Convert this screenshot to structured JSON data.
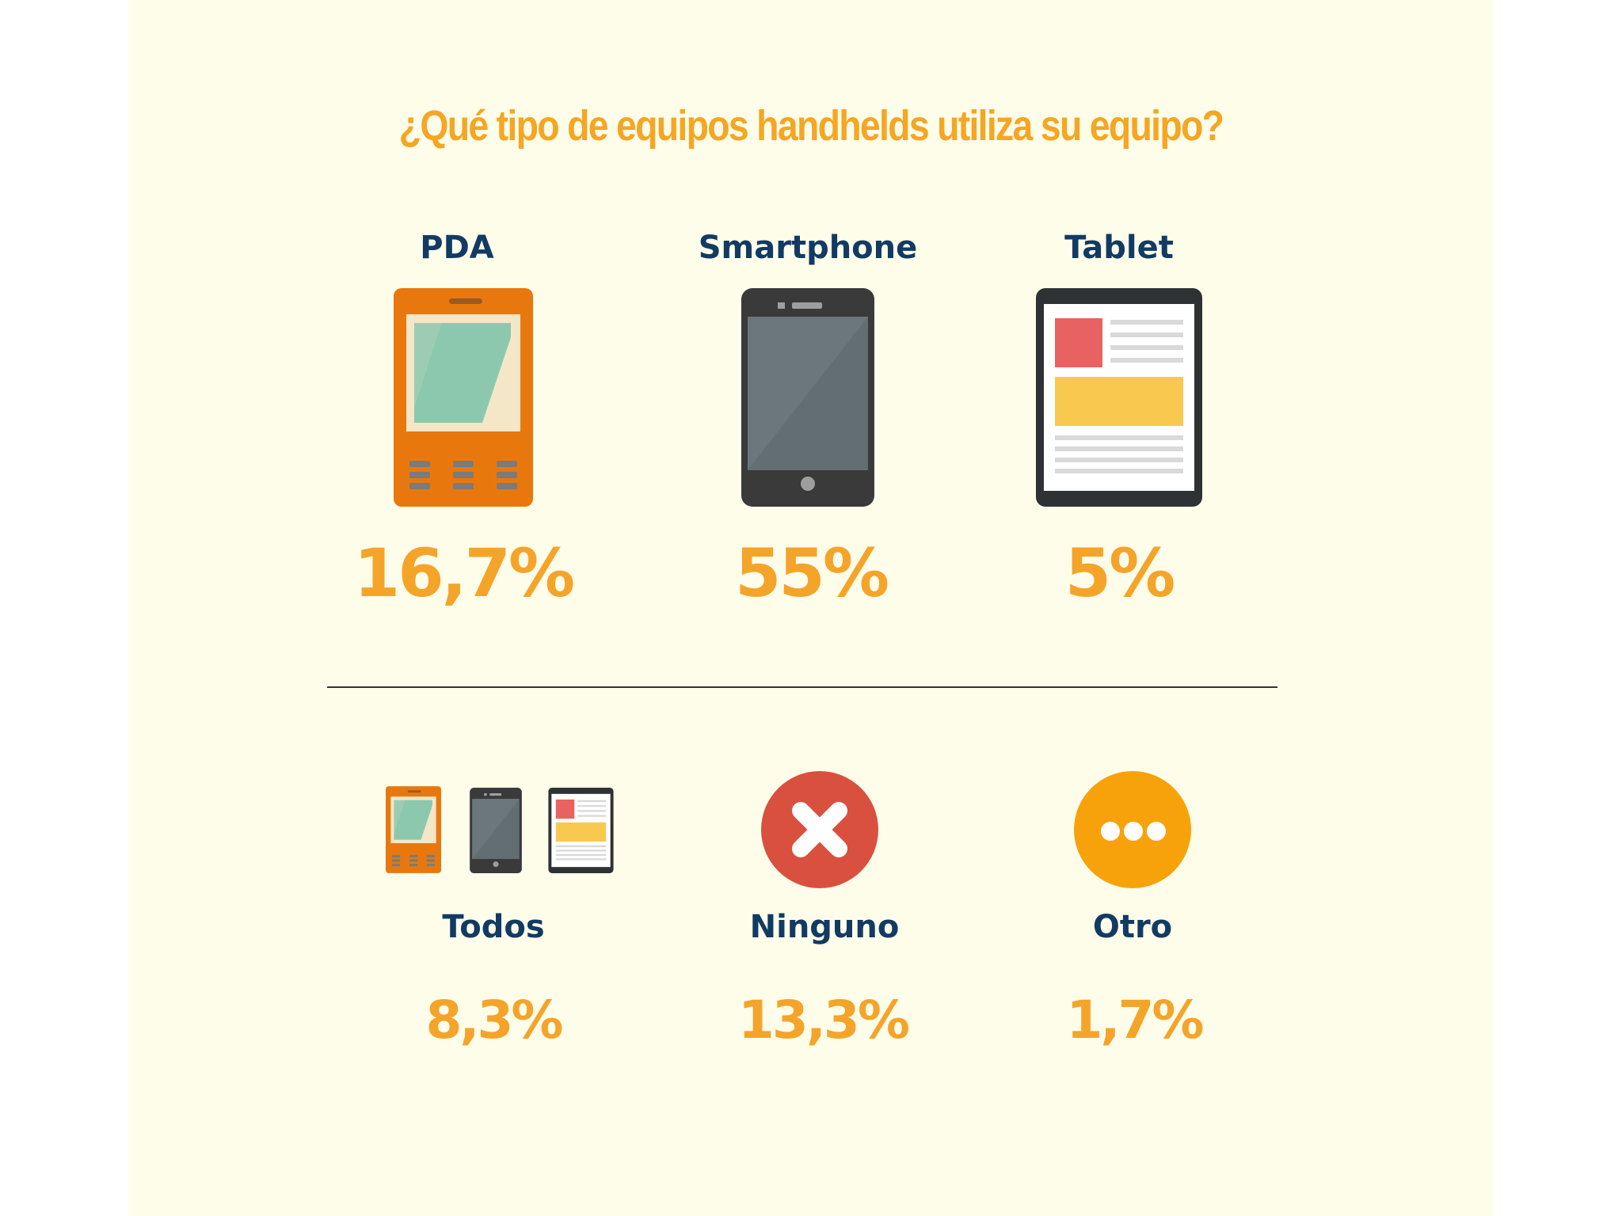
{
  "title": "¿Qué tipo de equipos handhelds utiliza su equipo?",
  "colors": {
    "background": "#fefdea",
    "title": "#f5a623",
    "label": "#123b63",
    "percent": "#f5a42a",
    "pda_body": "#e8780e",
    "pda_screen": "#8cc8ae",
    "smartphone_body": "#3a3a3a",
    "smartphone_screen": "#626e72",
    "tablet_red": "#e86262",
    "tablet_yellow": "#f9c94f",
    "ninguno_red": "#d9503f",
    "otro_orange": "#f8a20b"
  },
  "devices": [
    {
      "label": "PDA",
      "percent": "16,7%",
      "icon": "pda-icon"
    },
    {
      "label": "Smartphone",
      "percent": "55%",
      "icon": "smartphone-icon"
    },
    {
      "label": "Tablet",
      "percent": "5%",
      "icon": "tablet-icon"
    }
  ],
  "other_answers": [
    {
      "label": "Todos",
      "percent": "8,3%",
      "icon": "all-devices-icon"
    },
    {
      "label": "Ninguno",
      "percent": "13,3%",
      "icon": "x-circle-icon"
    },
    {
      "label": "Otro",
      "percent": "1,7%",
      "icon": "more-dots-icon"
    }
  ]
}
